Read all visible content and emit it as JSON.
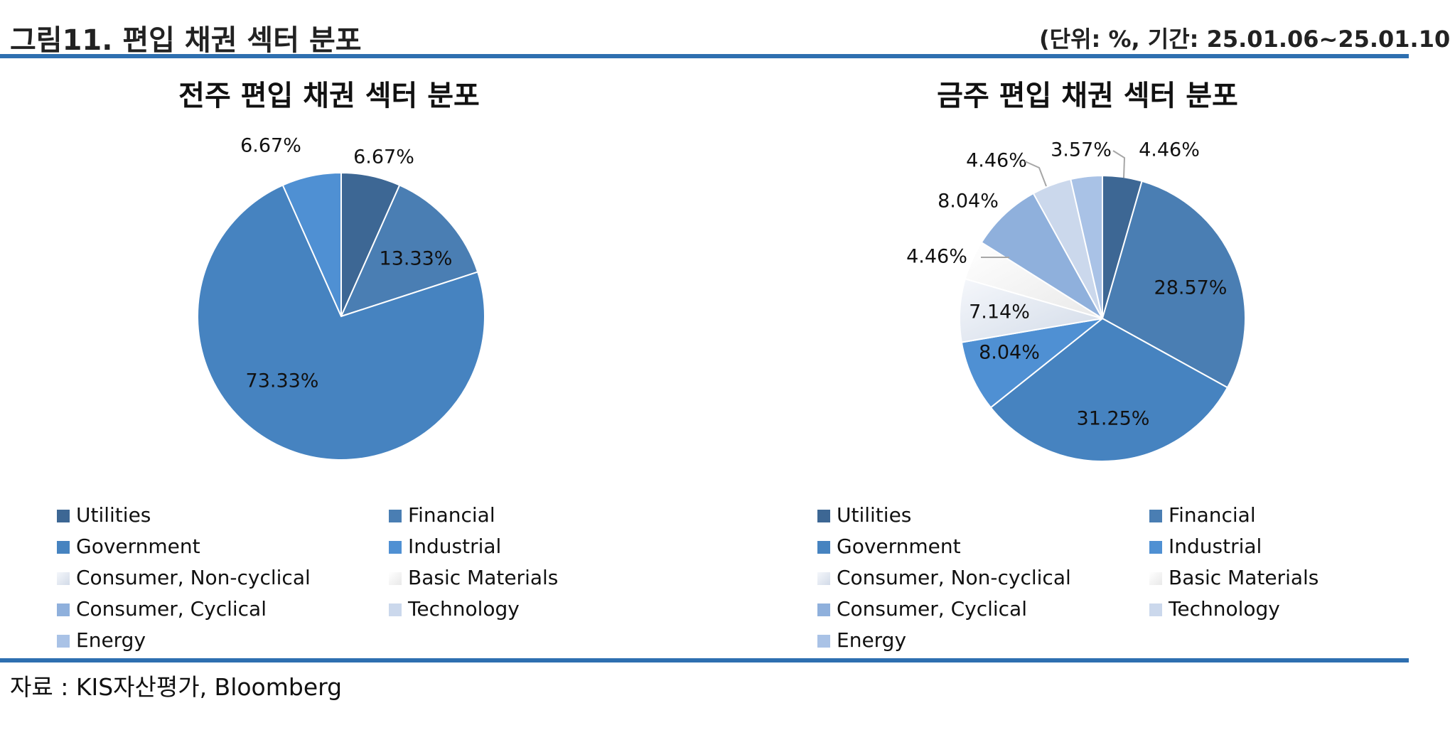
{
  "header": {
    "title": "그림11. 편입 채권 섹터 분포",
    "note": "(단위: %, 기간: 25.01.06~25.01.10"
  },
  "footer": {
    "source": "자료 : KIS자산평가, Bloomberg"
  },
  "colors": {
    "rule": "#2e6fb0",
    "Utilities": "#3d6794",
    "Financial": "#4a7eb3",
    "Government": "#4683c0",
    "Industrial": "#4f90d3",
    "Consumer, Non-cyclical": "#dfe6f0",
    "Basic Materials": "#f4f4f4",
    "Consumer, Cyclical": "#8fb0dc",
    "Technology": "#cbd8ec",
    "Energy": "#a9c2e6"
  },
  "chart_data": [
    {
      "type": "pie",
      "title": "전주 편입 채권 섹터 분포",
      "categories": [
        "Utilities",
        "Financial",
        "Government",
        "Industrial",
        "Consumer, Non-cyclical",
        "Basic Materials",
        "Consumer, Cyclical",
        "Technology",
        "Energy"
      ],
      "values": [
        6.67,
        13.33,
        73.33,
        6.67,
        0,
        0,
        0,
        0,
        0
      ],
      "labels": [
        "6.67%",
        "13.33%",
        "73.33%",
        "6.67%"
      ],
      "legend": "bottom"
    },
    {
      "type": "pie",
      "title": "금주 편입 채권 섹터 분포",
      "categories": [
        "Utilities",
        "Financial",
        "Government",
        "Industrial",
        "Consumer, Non-cyclical",
        "Basic Materials",
        "Consumer, Cyclical",
        "Technology",
        "Energy"
      ],
      "values": [
        4.46,
        28.57,
        31.25,
        8.04,
        7.14,
        4.46,
        8.04,
        4.46,
        3.57
      ],
      "labels": [
        "4.46%",
        "28.57%",
        "31.25%",
        "8.04%",
        "7.14%",
        "4.46%",
        "8.04%",
        "4.46%",
        "3.57%"
      ],
      "legend": "bottom"
    }
  ]
}
